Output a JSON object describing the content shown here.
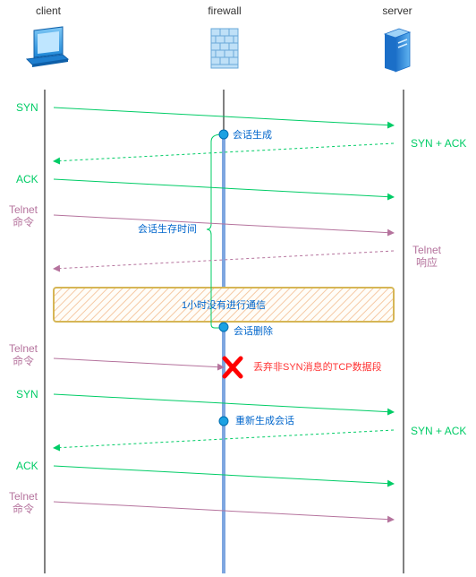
{
  "actors": {
    "client": "client",
    "firewall": "firewall",
    "server": "server"
  },
  "icons": {
    "client": "laptop-icon",
    "firewall": "firewall-brick-icon",
    "server": "server-tower-icon"
  },
  "colors": {
    "syn_green": "#00cc66",
    "telnet_pink": "#b5739d",
    "session_blue": "#0066cc",
    "firewall_line": "#7ea6e0",
    "drop_red": "#ff0000",
    "highlight_border": "#d6b656",
    "highlight_fill": "#ffe6cc"
  },
  "messages": {
    "syn_1": "SYN",
    "synack_1": "SYN + ACK",
    "ack_1": "ACK",
    "telnet_cmd_1": "Telnet\n命令",
    "telnet_resp": "Telnet\n响应",
    "telnet_cmd_2": "Telnet\n命令",
    "syn_2": "SYN",
    "synack_2": "SYN + ACK",
    "ack_2": "ACK",
    "telnet_cmd_3": "Telnet\n命令"
  },
  "events": {
    "session_create": "会话生成",
    "session_lifetime": "会话生存时间",
    "idle_period": "1小时没有进行通信",
    "session_delete": "会话删除",
    "drop_note": "丢弃非SYN消息的TCP数据段",
    "session_recreate": "重新生成会话"
  }
}
